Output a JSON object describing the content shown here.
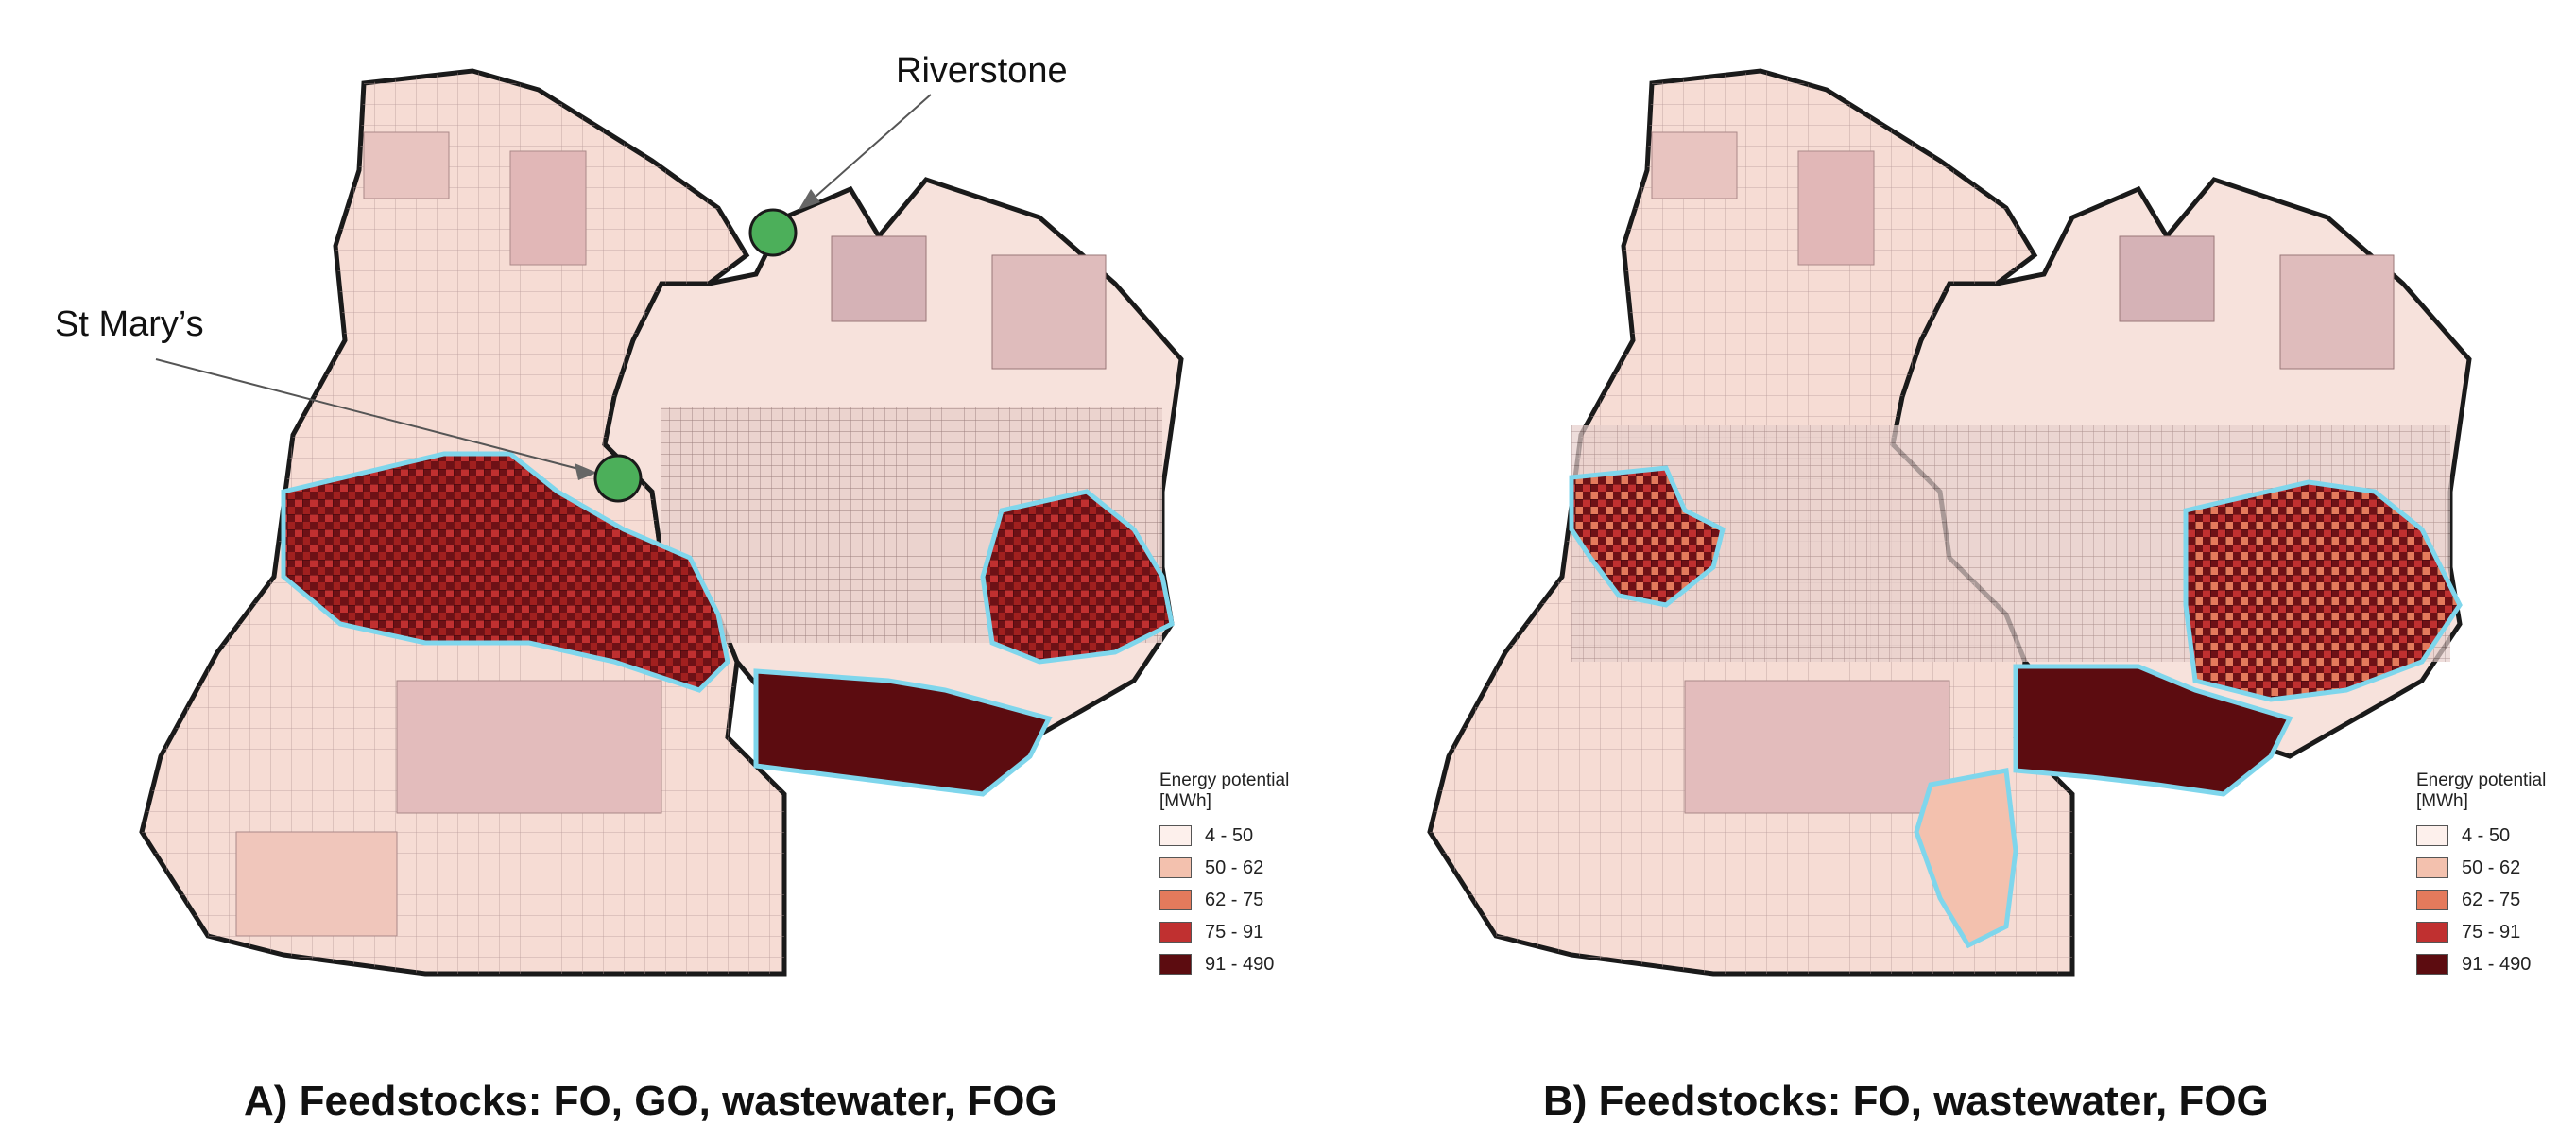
{
  "panels": [
    {
      "caption": "A) Feedstocks: FO, GO, wastewater, FOG",
      "labels": {
        "riverstone": "Riverstone",
        "st_marys": "St Mary’s"
      },
      "legend": {
        "title": "Energy potential\n[MWh]",
        "classes": [
          {
            "label": "4 - 50",
            "color": "#fdf0ec"
          },
          {
            "label": "50 - 62",
            "color": "#f3c1ae"
          },
          {
            "label": "62 - 75",
            "color": "#e47a5c"
          },
          {
            "label": "75 - 91",
            "color": "#c03030"
          },
          {
            "label": "91 - 490",
            "color": "#5c0c10"
          }
        ]
      }
    },
    {
      "caption": "B) Feedstocks: FO, wastewater, FOG",
      "legend": {
        "title": "Energy potential\n[MWh]",
        "classes": [
          {
            "label": "4 - 50",
            "color": "#fdf0ec"
          },
          {
            "label": "50 - 62",
            "color": "#f3c1ae"
          },
          {
            "label": "62 - 75",
            "color": "#e47a5c"
          },
          {
            "label": "75 - 91",
            "color": "#c03030"
          },
          {
            "label": "91 - 490",
            "color": "#5c0c10"
          }
        ]
      }
    }
  ],
  "colors": {
    "boundary": "#1a1a1a",
    "highlight_outline": "#7fd6ec",
    "plant_marker": "#4caf5a",
    "base_fill": "#f6dcd4",
    "muted_fill": "#d9b8b8"
  }
}
